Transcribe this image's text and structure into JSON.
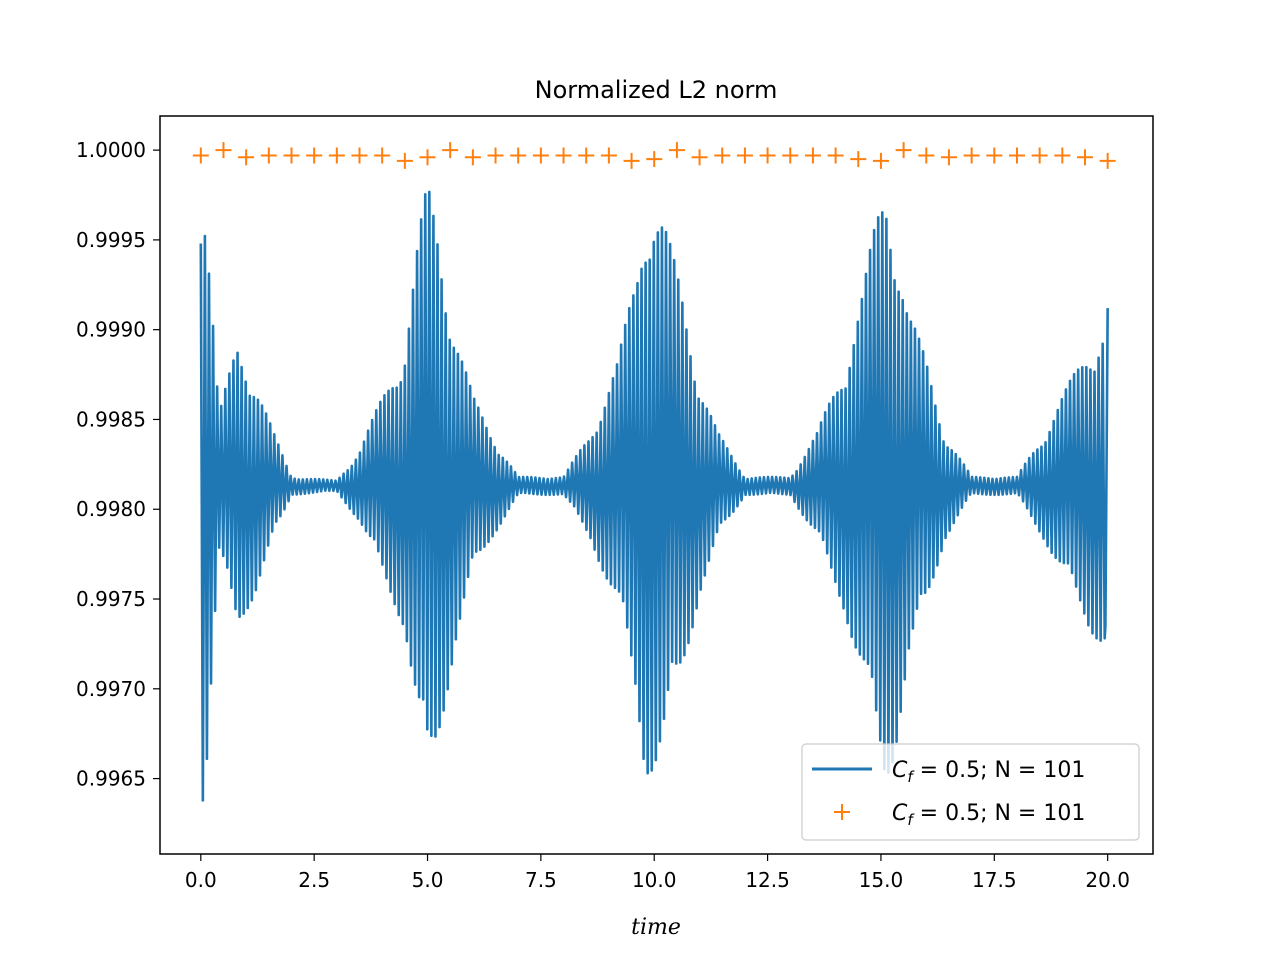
{
  "chart_data": {
    "type": "line",
    "title": "Normalized L2 norm",
    "xlabel": "time",
    "ylabel": "",
    "xlim": [
      -0.9,
      21.0
    ],
    "ylim": [
      0.99608,
      1.00019
    ],
    "x_ticks": [
      0.0,
      2.5,
      5.0,
      7.5,
      10.0,
      12.5,
      15.0,
      17.5,
      20.0
    ],
    "x_tick_labels": [
      "0.0",
      "2.5",
      "5.0",
      "7.5",
      "10.0",
      "12.5",
      "15.0",
      "17.5",
      "20.0"
    ],
    "y_ticks": [
      0.9965,
      0.997,
      0.9975,
      0.998,
      0.9985,
      0.999,
      0.9995,
      1.0
    ],
    "y_tick_labels": [
      "0.9965",
      "0.9970",
      "0.9975",
      "0.9980",
      "0.9985",
      "0.9990",
      "0.9995",
      "1.0000"
    ],
    "grid": false,
    "legend_position": "bottom-right",
    "colors": {
      "line": "#1f77b4",
      "markers": "#ff7f0e"
    },
    "series": [
      {
        "name": "C_f = 0.5;  N = 101",
        "style": "line",
        "baseline": 0.99813,
        "envelope_x": [
          0.0,
          0.1,
          0.4,
          0.8,
          1.2,
          1.6,
          2.0,
          3.0,
          3.5,
          4.0,
          4.5,
          4.8,
          5.0,
          5.2,
          5.6,
          6.0,
          6.4,
          7.0,
          8.0,
          8.6,
          9.2,
          9.6,
          9.8,
          10.0,
          10.2,
          10.6,
          11.0,
          11.4,
          12.0,
          13.0,
          13.6,
          14.2,
          14.6,
          14.9,
          15.1,
          15.3,
          15.6,
          16.0,
          16.4,
          17.0,
          18.0,
          18.6,
          19.2,
          19.6,
          19.9,
          20.0
        ],
        "envelope_amp": [
          0.0018,
          0.0017,
          0.0004,
          0.0008,
          0.0006,
          0.0003,
          5e-05,
          3e-05,
          0.0002,
          0.0005,
          0.0008,
          0.0014,
          0.0017,
          0.0015,
          0.0009,
          0.0005,
          0.0003,
          5e-05,
          5e-05,
          0.0003,
          0.0007,
          0.0012,
          0.0016,
          0.0016,
          0.0015,
          0.0011,
          0.0006,
          0.0003,
          5e-05,
          5e-05,
          0.0003,
          0.0007,
          0.0011,
          0.0015,
          0.0017,
          0.0015,
          0.001,
          0.0007,
          0.0003,
          5e-05,
          5e-05,
          0.0003,
          0.0006,
          0.0008,
          0.0009,
          0.0009
        ],
        "oscillation_period": 0.09,
        "end_values": [
          [
            19.95,
            0.99735
          ],
          [
            20.0,
            0.99912
          ]
        ]
      },
      {
        "name": "C_f = 0.5;  N = 101",
        "style": "markers",
        "marker": "+",
        "x": [
          0.0,
          0.5,
          1.0,
          1.5,
          2.0,
          2.5,
          3.0,
          3.5,
          4.0,
          4.5,
          5.0,
          5.5,
          6.0,
          6.5,
          7.0,
          7.5,
          8.0,
          8.5,
          9.0,
          9.5,
          10.0,
          10.5,
          11.0,
          11.5,
          12.0,
          12.5,
          13.0,
          13.5,
          14.0,
          14.5,
          15.0,
          15.5,
          16.0,
          16.5,
          17.0,
          17.5,
          18.0,
          18.5,
          19.0,
          19.5,
          20.0
        ],
        "y": [
          0.99997,
          1.0,
          0.99996,
          0.99997,
          0.99997,
          0.99997,
          0.99997,
          0.99997,
          0.99997,
          0.99994,
          0.99996,
          1.0,
          0.99996,
          0.99997,
          0.99997,
          0.99997,
          0.99997,
          0.99997,
          0.99997,
          0.99994,
          0.99995,
          1.0,
          0.99996,
          0.99997,
          0.99997,
          0.99997,
          0.99997,
          0.99997,
          0.99997,
          0.99995,
          0.99994,
          1.0,
          0.99997,
          0.99996,
          0.99997,
          0.99997,
          0.99997,
          0.99997,
          0.99997,
          0.99996,
          0.99994
        ]
      }
    ]
  },
  "legend": {
    "items": [
      {
        "prefix": "C",
        "sub": "f",
        "rest": " = 0.5;  N = 101"
      },
      {
        "prefix": "C",
        "sub": "f",
        "rest": " = 0.5;  N = 101"
      }
    ]
  }
}
